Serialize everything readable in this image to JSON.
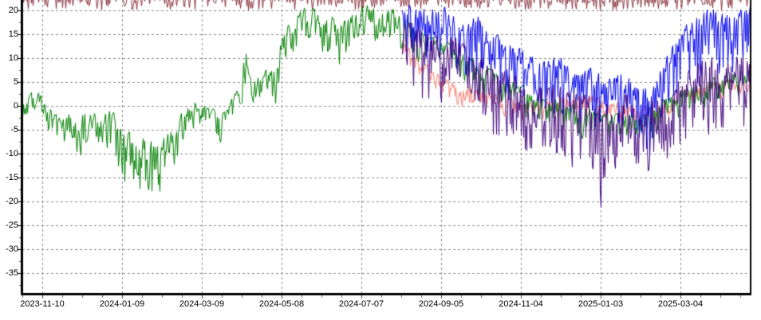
{
  "chart_data": {
    "type": "line",
    "title": "",
    "background": "#FFFFFF",
    "grid": {
      "on": true,
      "color": "#8C8C8C",
      "style": "dashed",
      "legend": "none"
    },
    "axes": {
      "y": {
        "ticks": [
          20,
          15,
          10,
          5,
          0,
          -5,
          -10,
          -15,
          -20,
          -25,
          -30,
          -35
        ],
        "tick_labels": [
          "20",
          "15",
          "10",
          "5",
          "0",
          "-5",
          "-10",
          "-15",
          "-20",
          "-25",
          "-30",
          "-35"
        ],
        "visible_range": [
          -39.2,
          22.2
        ],
        "minor_tick_step": 2.5
      },
      "x": {
        "tick_labels": [
          "2023-11-10",
          "2024-01-09",
          "2024-03-09",
          "2024-05-08",
          "2024-07-07",
          "2024-09-05",
          "2024-11-04",
          "2025-01-03",
          "2025-03-04"
        ],
        "tick_interval_days": 60,
        "minor_tick_step_days": 15,
        "data_start_date": "2023-10-26",
        "data_end_date": "2025-04-26",
        "first_tick_day_offset": 15,
        "total_days": 548
      }
    },
    "series": [
      {
        "name": "dark-red-top-series",
        "color": "#8B3640",
        "description": "spiky series clipped at top of visible area, values ~20-23",
        "noise_exponent": 3.2,
        "smoothing": 0.0,
        "anchors": [
          [
            0,
            23,
            3
          ],
          [
            548,
            23,
            3
          ]
        ]
      },
      {
        "name": "salmon-series",
        "color": "#FA8072",
        "description": "mostly occluded mid-level series appearing after 2024-08",
        "noise_exponent": 2.0,
        "smoothing": 0.3,
        "anchors": [
          [
            286,
            14,
            6
          ],
          [
            307,
            8,
            6
          ],
          [
            331,
            5,
            6
          ],
          [
            355,
            3,
            5
          ],
          [
            379,
            1,
            5
          ],
          [
            403,
            2,
            5
          ],
          [
            427,
            3,
            6
          ],
          [
            451,
            1,
            5
          ],
          [
            475,
            0,
            5
          ],
          [
            499,
            4,
            5
          ],
          [
            523,
            6,
            5
          ],
          [
            548,
            6,
            5
          ]
        ]
      },
      {
        "name": "green-series",
        "color": "#008000",
        "description": "main left series: winter dips to -27, summer plateau near +20",
        "noise_exponent": 2.2,
        "smoothing": 0.35,
        "anchors": [
          [
            0,
            2,
            5
          ],
          [
            10,
            4,
            6
          ],
          [
            19,
            1,
            9
          ],
          [
            28,
            -2,
            11
          ],
          [
            37,
            0,
            11
          ],
          [
            46,
            0,
            13
          ],
          [
            58,
            -1,
            9
          ],
          [
            67,
            0,
            12
          ],
          [
            73,
            -2,
            16
          ],
          [
            79,
            -4,
            23
          ],
          [
            88,
            -5,
            18
          ],
          [
            97,
            -4,
            20
          ],
          [
            106,
            -5,
            21
          ],
          [
            112,
            -4,
            13
          ],
          [
            121,
            0,
            9
          ],
          [
            130,
            2,
            8
          ],
          [
            136,
            1,
            7
          ],
          [
            142,
            0,
            9
          ],
          [
            151,
            0,
            14
          ],
          [
            157,
            2,
            8
          ],
          [
            163,
            5,
            9
          ],
          [
            168,
            15,
            13
          ],
          [
            172,
            6,
            9
          ],
          [
            181,
            8,
            10
          ],
          [
            190,
            10,
            27
          ],
          [
            194,
            16,
            12
          ],
          [
            205,
            20,
            10
          ],
          [
            214,
            22,
            12
          ],
          [
            223,
            21,
            10
          ],
          [
            232,
            20,
            14
          ],
          [
            241,
            19,
            13
          ],
          [
            250,
            21,
            9
          ],
          [
            259,
            22,
            10
          ],
          [
            268,
            21,
            9
          ],
          [
            277,
            22,
            11
          ],
          [
            286,
            19,
            9
          ],
          [
            301,
            16,
            9
          ],
          [
            319,
            14,
            9
          ],
          [
            343,
            10,
            10
          ],
          [
            367,
            6,
            9
          ],
          [
            391,
            3,
            8
          ],
          [
            415,
            1,
            8
          ],
          [
            439,
            -1,
            8
          ],
          [
            463,
            -1,
            8
          ],
          [
            487,
            3,
            8
          ],
          [
            511,
            6,
            8
          ],
          [
            535,
            8,
            8
          ],
          [
            548,
            8,
            8
          ]
        ]
      },
      {
        "name": "blue-series",
        "color": "#0000EE",
        "description": "bright blue series starting 2024-08, descending then rising to +20",
        "noise_exponent": 2.0,
        "smoothing": 0.15,
        "anchors": [
          [
            286,
            22,
            12
          ],
          [
            295,
            22,
            14
          ],
          [
            307,
            21,
            12
          ],
          [
            319,
            22,
            16
          ],
          [
            331,
            18,
            14
          ],
          [
            343,
            20,
            16
          ],
          [
            355,
            16,
            14
          ],
          [
            367,
            14,
            16
          ],
          [
            379,
            12,
            12
          ],
          [
            391,
            10,
            14
          ],
          [
            403,
            12,
            16
          ],
          [
            415,
            8,
            12
          ],
          [
            427,
            10,
            18
          ],
          [
            439,
            6,
            12
          ],
          [
            451,
            8,
            14
          ],
          [
            463,
            6,
            16
          ],
          [
            472,
            4,
            18
          ],
          [
            481,
            10,
            16
          ],
          [
            490,
            14,
            16
          ],
          [
            499,
            18,
            16
          ],
          [
            508,
            20,
            18
          ],
          [
            517,
            22,
            18
          ],
          [
            526,
            21,
            16
          ],
          [
            535,
            22,
            18
          ],
          [
            548,
            22,
            16
          ]
        ]
      },
      {
        "name": "indigo-series",
        "color": "#45087F",
        "description": "dark violet series starting 2024-08, deep dips to -22 near 2025-01",
        "noise_exponent": 2.0,
        "smoothing": 0.15,
        "anchors": [
          [
            286,
            20,
            16
          ],
          [
            295,
            18,
            16
          ],
          [
            307,
            16,
            20
          ],
          [
            319,
            17,
            16
          ],
          [
            331,
            14,
            16
          ],
          [
            343,
            12,
            18
          ],
          [
            355,
            10,
            20
          ],
          [
            367,
            8,
            16
          ],
          [
            379,
            6,
            18
          ],
          [
            391,
            5,
            16
          ],
          [
            403,
            6,
            20
          ],
          [
            415,
            4,
            18
          ],
          [
            427,
            4,
            26
          ],
          [
            436,
            2,
            24
          ],
          [
            445,
            2,
            18
          ],
          [
            454,
            4,
            18
          ],
          [
            463,
            0,
            16
          ],
          [
            472,
            2,
            22
          ],
          [
            481,
            4,
            18
          ],
          [
            490,
            6,
            16
          ],
          [
            499,
            8,
            18
          ],
          [
            508,
            10,
            18
          ],
          [
            517,
            12,
            20
          ],
          [
            526,
            10,
            18
          ],
          [
            535,
            12,
            20
          ],
          [
            548,
            12,
            18
          ]
        ]
      }
    ]
  }
}
